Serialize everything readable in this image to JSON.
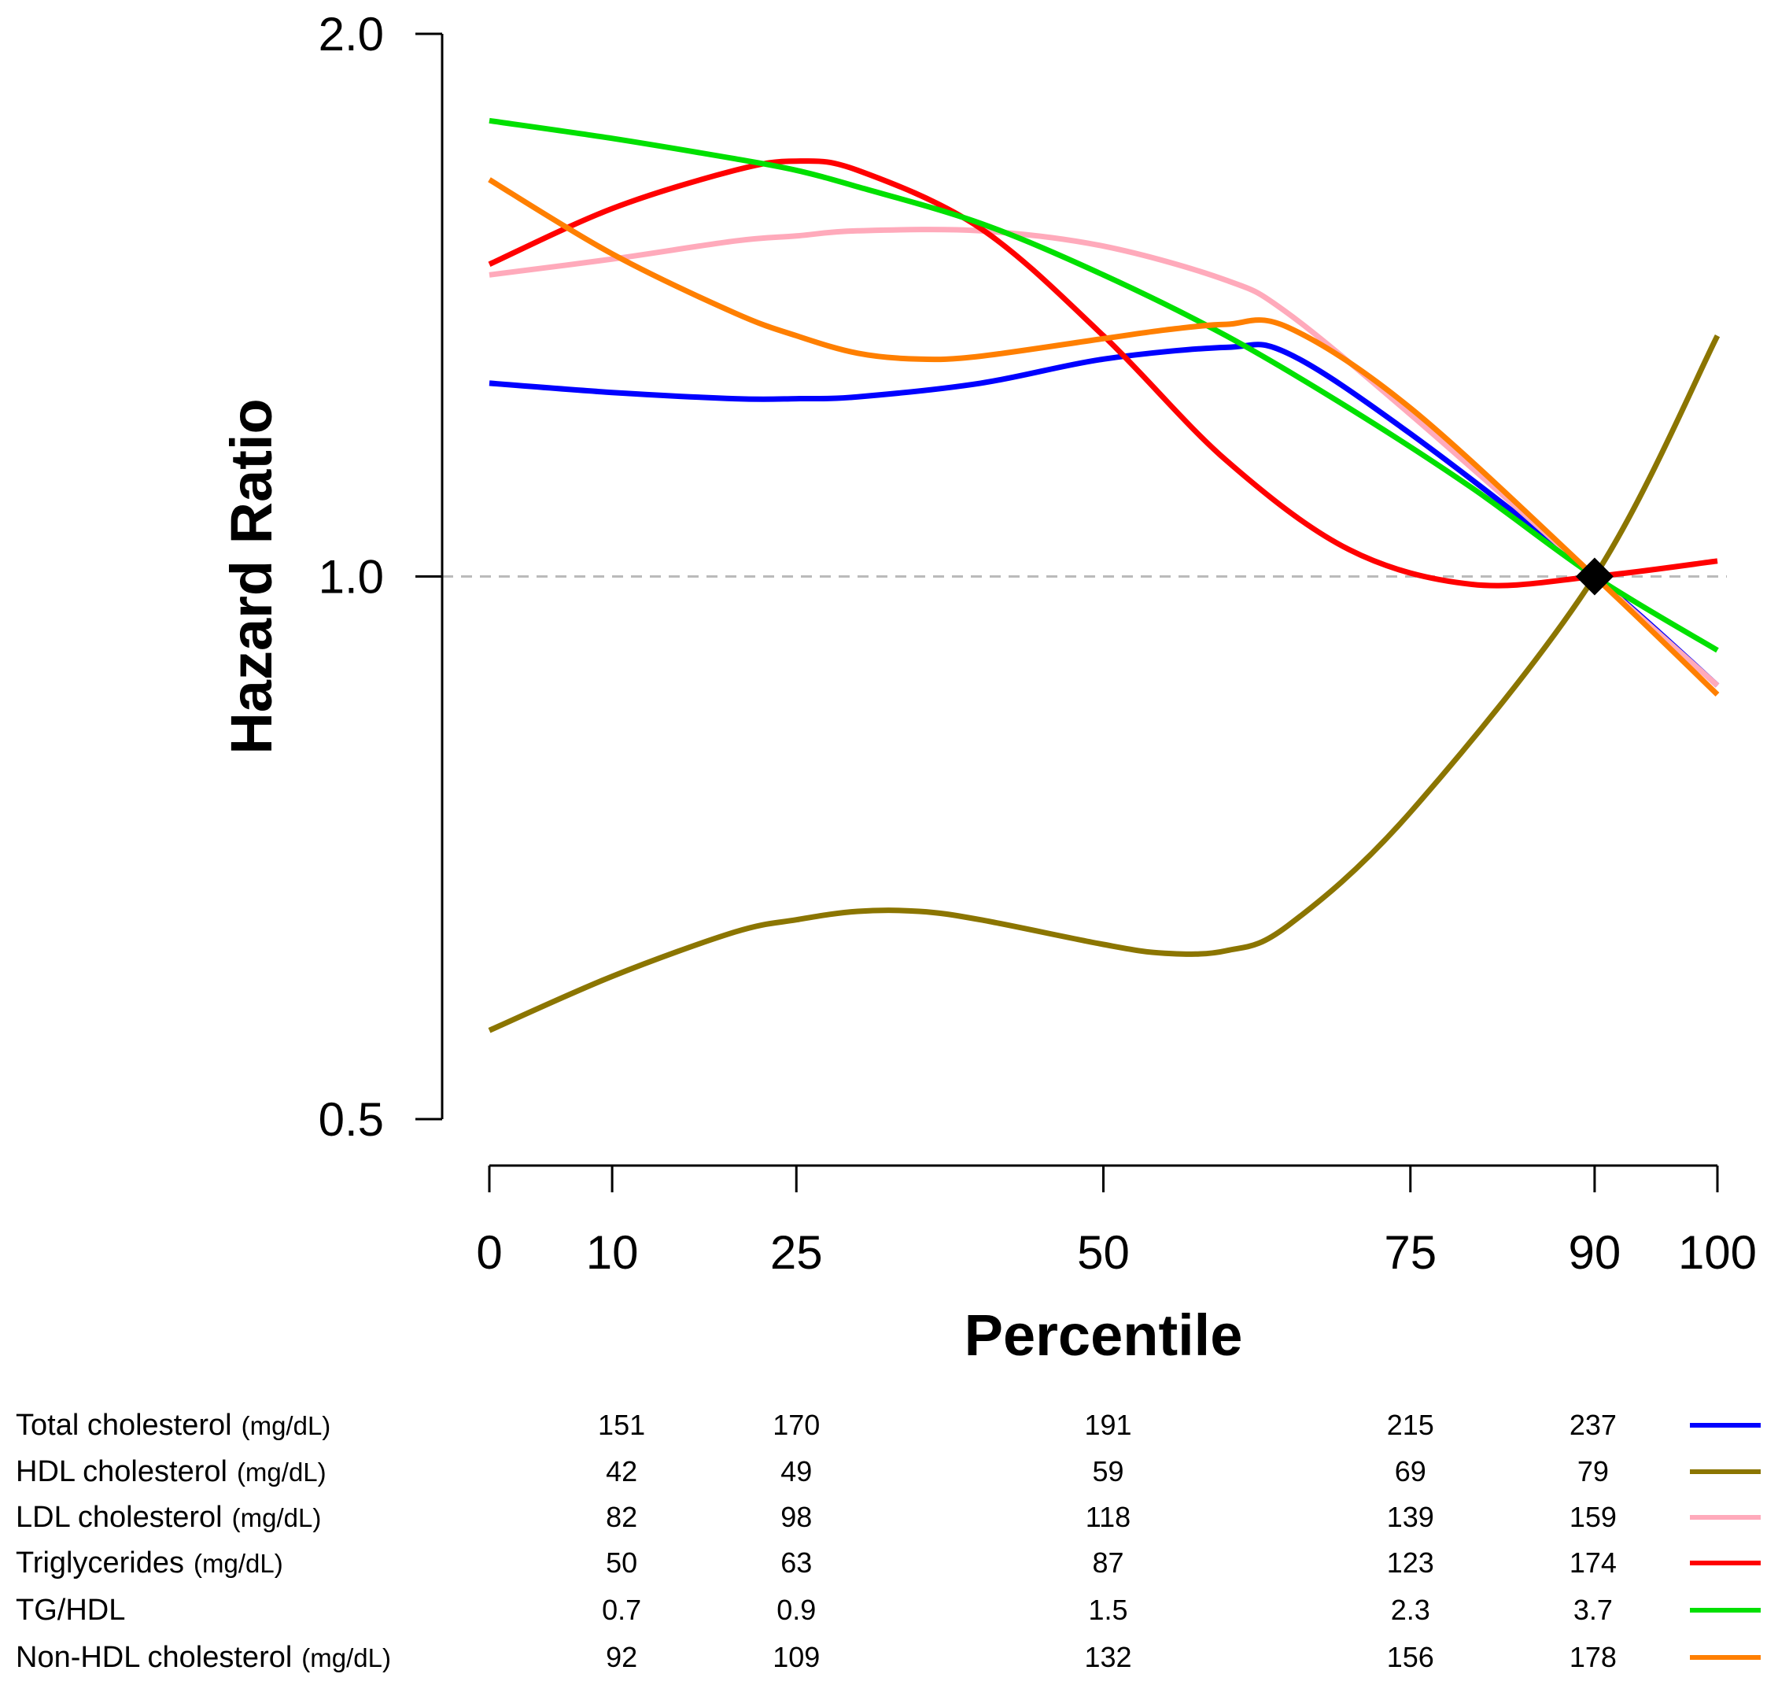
{
  "chart_data": {
    "type": "line",
    "ylabel": "Hazard Ratio",
    "xlabel": "Percentile",
    "y_scale": "log",
    "ylim": [
      0.5,
      2.0
    ],
    "xlim": [
      0,
      100
    ],
    "y_ticks": [
      {
        "value": 0.5,
        "label": "0.5"
      },
      {
        "value": 1.0,
        "label": "1.0"
      },
      {
        "value": 2.0,
        "label": "2.0"
      }
    ],
    "x_ticks": [
      {
        "value": 0,
        "label": "0"
      },
      {
        "value": 10,
        "label": "10"
      },
      {
        "value": 25,
        "label": "25"
      },
      {
        "value": 50,
        "label": "50"
      },
      {
        "value": 75,
        "label": "75"
      },
      {
        "value": 90,
        "label": "90"
      },
      {
        "value": 100,
        "label": "100"
      }
    ],
    "reference_line": {
      "y": 1.0,
      "style": "dashed",
      "color": "#bbbbbb"
    },
    "reference_point": {
      "x": 90,
      "y": 1.0,
      "marker": "diamond",
      "color": "#000000"
    },
    "series": [
      {
        "name": "Total cholesterol",
        "color": "#0000ff",
        "x": [
          0,
          10,
          20,
          25,
          30,
          40,
          50,
          60,
          65,
          75,
          90,
          100
        ],
        "y": [
          1.28,
          1.265,
          1.255,
          1.255,
          1.258,
          1.28,
          1.32,
          1.34,
          1.33,
          1.2,
          1.0,
          0.87
        ]
      },
      {
        "name": "HDL cholesterol",
        "color": "#8b7500",
        "x": [
          0,
          10,
          20,
          25,
          30,
          35,
          40,
          50,
          55,
          60,
          65,
          75,
          90,
          100
        ],
        "y": [
          0.56,
          0.6,
          0.635,
          0.645,
          0.652,
          0.652,
          0.645,
          0.625,
          0.618,
          0.62,
          0.64,
          0.74,
          1.0,
          1.36
        ]
      },
      {
        "name": "LDL cholesterol",
        "color": "#ffaabb",
        "x": [
          0,
          10,
          20,
          25,
          30,
          40,
          50,
          60,
          65,
          75,
          90,
          100
        ],
        "y": [
          1.47,
          1.5,
          1.535,
          1.545,
          1.555,
          1.555,
          1.525,
          1.46,
          1.4,
          1.23,
          1.0,
          0.87
        ]
      },
      {
        "name": "Triglycerides",
        "color": "#ff0000",
        "x": [
          0,
          10,
          20,
          25,
          30,
          40,
          50,
          60,
          70,
          80,
          90,
          100
        ],
        "y": [
          1.49,
          1.6,
          1.68,
          1.7,
          1.68,
          1.56,
          1.36,
          1.16,
          1.035,
          0.99,
          1.0,
          1.02
        ]
      },
      {
        "name": "TG/HDL",
        "color": "#00e000",
        "x": [
          0,
          10,
          20,
          25,
          30,
          40,
          50,
          60,
          70,
          80,
          90,
          100
        ],
        "y": [
          1.79,
          1.75,
          1.705,
          1.68,
          1.645,
          1.57,
          1.47,
          1.36,
          1.24,
          1.12,
          1.0,
          0.91
        ]
      },
      {
        "name": "Non-HDL cholesterol",
        "color": "#ff7f00",
        "x": [
          0,
          10,
          20,
          25,
          30,
          35,
          40,
          50,
          55,
          60,
          65,
          75,
          90,
          100
        ],
        "y": [
          1.66,
          1.51,
          1.4,
          1.36,
          1.33,
          1.32,
          1.325,
          1.355,
          1.37,
          1.38,
          1.375,
          1.24,
          1.0,
          0.86
        ]
      }
    ],
    "table": {
      "columns": [
        "10",
        "25",
        "50",
        "75",
        "90"
      ],
      "rows": [
        {
          "label": "Total cholesterol",
          "unit": "(mg/dL)",
          "values": [
            "151",
            "170",
            "191",
            "215",
            "237"
          ],
          "color": "#0000ff"
        },
        {
          "label": "HDL cholesterol",
          "unit": "(mg/dL)",
          "values": [
            "42",
            "49",
            "59",
            "69",
            "79"
          ],
          "color": "#8b7500"
        },
        {
          "label": "LDL cholesterol",
          "unit": "(mg/dL)",
          "values": [
            "82",
            "98",
            "118",
            "139",
            "159"
          ],
          "color": "#ffaabb"
        },
        {
          "label": "Triglycerides",
          "unit": "(mg/dL)",
          "values": [
            "50",
            "63",
            "87",
            "123",
            "174"
          ],
          "color": "#ff0000"
        },
        {
          "label": "TG/HDL",
          "unit": "",
          "values": [
            "0.7",
            "0.9",
            "1.5",
            "2.3",
            "3.7"
          ],
          "color": "#00e000"
        },
        {
          "label": "Non-HDL cholesterol",
          "unit": "(mg/dL)",
          "values": [
            "92",
            "109",
            "132",
            "156",
            "178"
          ],
          "color": "#ff7f00"
        }
      ]
    }
  }
}
